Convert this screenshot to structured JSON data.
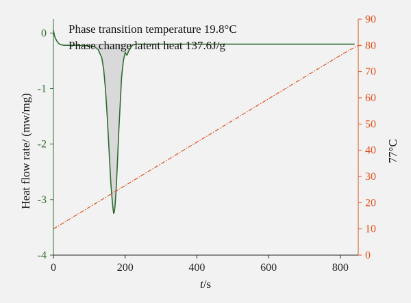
{
  "chart_data": {
    "type": "line",
    "annotations": [
      "Phase transition temperature 19.8°C",
      "Phase change latent heat 137.6J/g"
    ],
    "xlabel_italic": "t",
    "xlabel_unit": "/s",
    "ylabel": "Heat flow rate/ (mw/mg)",
    "y2label": "77°C",
    "xlim": [
      0,
      850
    ],
    "ylim": [
      -4,
      0.25
    ],
    "y2lim": [
      0,
      90
    ],
    "x_ticks": [
      0,
      200,
      400,
      600,
      800
    ],
    "y_ticks": [
      0,
      -1,
      -2,
      -3,
      -4
    ],
    "y2_ticks": [
      0,
      10,
      20,
      30,
      40,
      50,
      60,
      70,
      80,
      90
    ],
    "x_tick_labels": [
      "0",
      "200",
      "400",
      "600",
      "800"
    ],
    "y_tick_labels": [
      "0",
      "-1",
      "-2",
      "-3",
      "-4"
    ],
    "y2_tick_labels": [
      "0",
      "10",
      "20",
      "30",
      "40",
      "50",
      "60",
      "70",
      "80",
      "90"
    ],
    "series": [
      {
        "axis": "left",
        "color": "#2e6b2e",
        "style": "solid",
        "x": [
          0,
          3,
          6,
          10,
          15,
          20,
          30,
          45,
          60,
          80,
          100,
          115,
          125,
          135,
          140,
          145,
          150,
          155,
          160,
          165,
          168,
          170,
          172,
          175,
          178,
          182,
          186,
          190,
          195,
          200,
          205,
          210,
          220,
          230,
          240,
          260,
          300,
          400,
          500,
          600,
          700,
          800,
          840
        ],
        "y": [
          0.05,
          -0.05,
          -0.1,
          -0.15,
          -0.19,
          -0.21,
          -0.22,
          -0.22,
          -0.22,
          -0.225,
          -0.23,
          -0.25,
          -0.3,
          -0.45,
          -0.65,
          -1.0,
          -1.5,
          -2.1,
          -2.7,
          -3.1,
          -3.25,
          -3.22,
          -3.1,
          -2.8,
          -2.4,
          -1.8,
          -1.3,
          -0.8,
          -0.5,
          -0.35,
          -0.4,
          -0.32,
          -0.22,
          -0.2,
          -0.2,
          -0.2,
          -0.2,
          -0.2,
          -0.2,
          -0.2,
          -0.2,
          -0.2,
          -0.2
        ]
      },
      {
        "axis": "right",
        "color": "#e0501a",
        "style": "dashdot",
        "x": [
          0,
          810,
          850
        ],
        "y": [
          10,
          77,
          80
        ]
      }
    ],
    "fill_region": {
      "x_start": 100,
      "x_end": 240,
      "baseline": -0.2
    }
  }
}
